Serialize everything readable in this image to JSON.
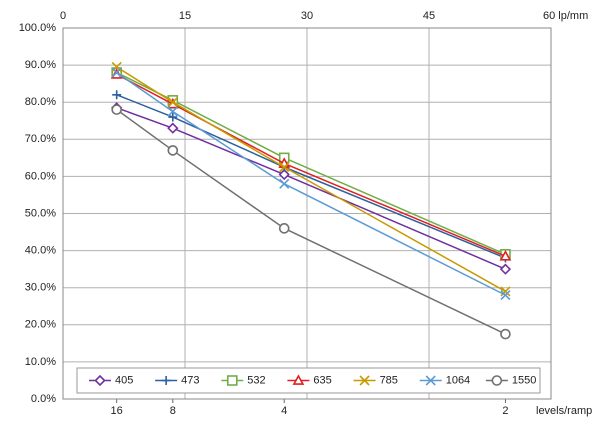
{
  "chart_data": {
    "type": "line",
    "x": [
      6.6,
      13.5,
      27.2,
      54.4
    ],
    "xlim": [
      0,
      60
    ],
    "xticks": [
      0,
      15,
      30,
      45,
      {
        "value": 60,
        "label": "60 lp/mm"
      }
    ],
    "x2ticks": [
      {
        "value": 6.6,
        "label": "16"
      },
      {
        "value": 13.5,
        "label": "8"
      },
      {
        "value": 27.2,
        "label": "4"
      },
      {
        "value": 54.4,
        "label": "2"
      }
    ],
    "x2label": "levels/ramp",
    "ylim": [
      0,
      100
    ],
    "yticks": [
      {
        "value": 0,
        "label": "0.0%"
      },
      {
        "value": 10,
        "label": "10.0%"
      },
      {
        "value": 20,
        "label": "20.0%"
      },
      {
        "value": 30,
        "label": "30.0%"
      },
      {
        "value": 40,
        "label": "40.0%"
      },
      {
        "value": 50,
        "label": "50.0%"
      },
      {
        "value": 60,
        "label": "60.0%"
      },
      {
        "value": 70,
        "label": "70.0%"
      },
      {
        "value": 80,
        "label": "80.0%"
      },
      {
        "value": 90,
        "label": "90.0%"
      },
      {
        "value": 100,
        "label": "100.0%"
      }
    ],
    "grid": true,
    "legend": "bottom",
    "series": [
      {
        "name": "405",
        "color": "#7030a0",
        "marker": "diamond",
        "values": [
          78.5,
          73,
          60.5,
          35
        ]
      },
      {
        "name": "473",
        "color": "#2e5f9e",
        "marker": "plus",
        "values": [
          82,
          76,
          62.5,
          38
        ]
      },
      {
        "name": "532",
        "color": "#70ad47",
        "marker": "square",
        "values": [
          88,
          80.5,
          65,
          39
        ]
      },
      {
        "name": "635",
        "color": "#e02020",
        "marker": "triangle",
        "values": [
          87.5,
          79.5,
          63.5,
          38.5
        ]
      },
      {
        "name": "785",
        "color": "#c89a00",
        "marker": "x",
        "values": [
          89.5,
          80,
          62.5,
          29
        ]
      },
      {
        "name": "1064",
        "color": "#5b9bd5",
        "marker": "x",
        "values": [
          88,
          77.5,
          58,
          28
        ]
      },
      {
        "name": "1550",
        "color": "#707070",
        "marker": "circle",
        "values": [
          78,
          67,
          46,
          17.5
        ]
      }
    ]
  }
}
